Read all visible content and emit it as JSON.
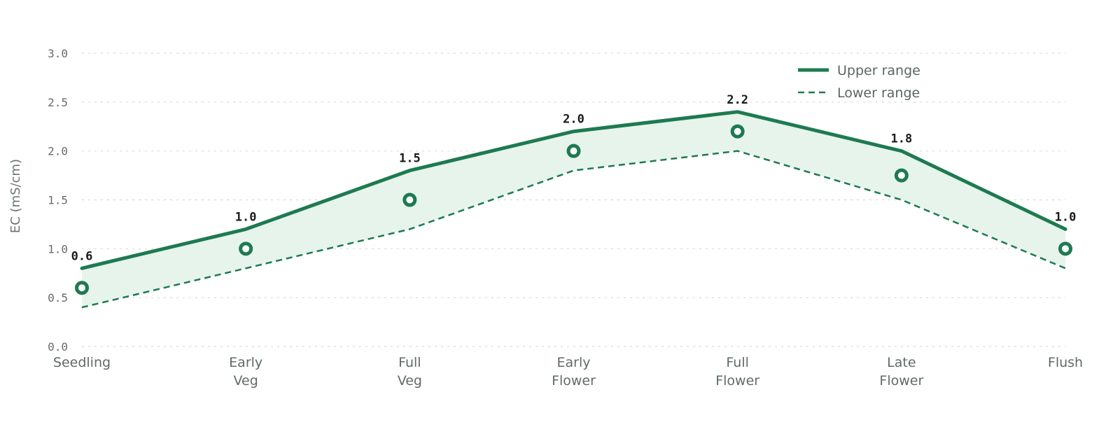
{
  "chart_data": {
    "type": "line",
    "title": "",
    "xlabel": "",
    "ylabel": "EC  (mS/cm)",
    "ylim": [
      0,
      3.0
    ],
    "yticks": [
      "0.0",
      "0.5",
      "1.0",
      "1.5",
      "2.0",
      "2.5",
      "3.0"
    ],
    "grid": true,
    "legend_position": "top-right",
    "categories": [
      [
        "Seedling"
      ],
      [
        "Early",
        "Veg"
      ],
      [
        "Full",
        "Veg"
      ],
      [
        "Early",
        "Flower"
      ],
      [
        "Full",
        "Flower"
      ],
      [
        "Late",
        "Flower"
      ],
      [
        "Flush"
      ]
    ],
    "series": [
      {
        "name": "Upper range",
        "style": "solid",
        "values": [
          0.8,
          1.2,
          1.8,
          2.2,
          2.4,
          2.0,
          1.2
        ]
      },
      {
        "name": "Lower range",
        "style": "dashed",
        "values": [
          0.4,
          0.8,
          1.2,
          1.8,
          2.0,
          1.5,
          0.8
        ]
      }
    ],
    "target": {
      "values": [
        0.6,
        1.0,
        1.5,
        2.0,
        2.2,
        1.75,
        1.0
      ],
      "labels": [
        "0.6",
        "1.0",
        "1.5",
        "2.0",
        "2.2",
        "1.8",
        "1.0"
      ]
    },
    "colors": {
      "line": "#1e7a50",
      "fill": "#e6f4ec",
      "label": "#1a1a1a"
    }
  }
}
